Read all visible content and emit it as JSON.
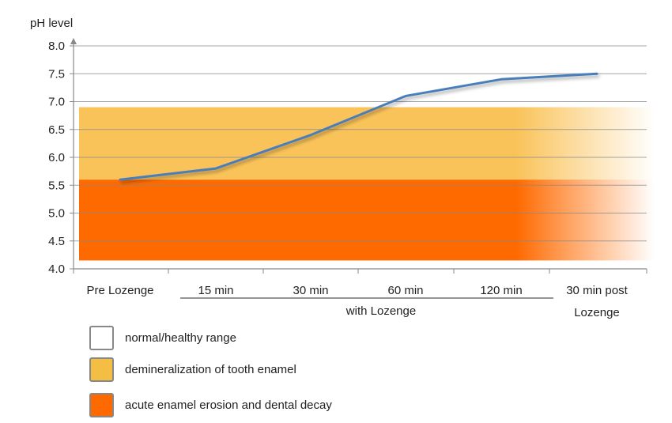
{
  "chart_data": {
    "type": "line",
    "ylabel": "pH  level",
    "ylim": [
      4.0,
      8.0
    ],
    "yticks": [
      "4.0",
      "4.5",
      "5.0",
      "5.5",
      "6.0",
      "6.5",
      "7.0",
      "7.5",
      "8.0"
    ],
    "grid": true,
    "categories": [
      "Pre Lozenge",
      "15 min",
      "30 min",
      "60 min",
      "120 min",
      "30 min post Lozenge"
    ],
    "category_lines": [
      [
        "Pre Lozenge"
      ],
      [
        "15 min"
      ],
      [
        "30 min"
      ],
      [
        "60 min"
      ],
      [
        "120 min"
      ],
      [
        "30 min post",
        "Lozenge"
      ]
    ],
    "group_label": "with Lozenge",
    "series": [
      {
        "values": [
          5.6,
          5.8,
          6.4,
          7.1,
          7.4,
          7.5
        ],
        "color": "#4a7ebb"
      }
    ],
    "bands": [
      {
        "from": 5.6,
        "to": 6.9,
        "color": "#fac35a",
        "label": "demineralization of tooth enamel"
      },
      {
        "from": 4.15,
        "to": 5.6,
        "color": "#ff6a00",
        "label": "acute enamel erosion and dental decay"
      }
    ],
    "legend": [
      {
        "label": "normal/healthy range",
        "color": "#ffffff"
      },
      {
        "label": "demineralization of tooth enamel",
        "color": "#f4bd44"
      },
      {
        "label": "acute enamel erosion and dental decay",
        "color": "#ff6a00"
      }
    ],
    "legend_position": "bottom-left"
  }
}
